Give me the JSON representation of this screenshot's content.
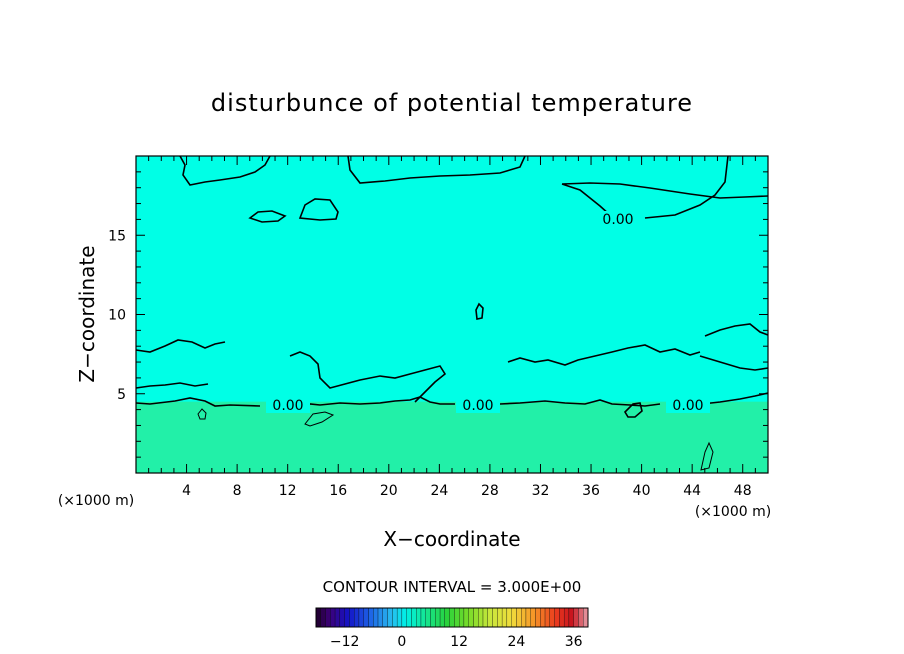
{
  "chart_data": {
    "type": "heatmap",
    "title": "disturbunce of potential temperature",
    "xlabel": "X−coordinate",
    "ylabel": "Z−coordinate",
    "x_unit": "(×1000 m)",
    "y_unit": "(×1000 m)",
    "xlim": [
      0,
      50
    ],
    "ylim": [
      0,
      20
    ],
    "x_ticks": [
      4,
      8,
      12,
      16,
      20,
      24,
      28,
      32,
      36,
      40,
      44,
      48
    ],
    "y_ticks": [
      5,
      10,
      15
    ],
    "contour_labels": [
      "0.00",
      "0.00",
      "0.00",
      "0.00"
    ],
    "contour_interval_text": "CONTOUR INTERVAL = 3.000E+00",
    "colorbar": {
      "min": -18,
      "max": 39,
      "ticks": [
        -12,
        0,
        12,
        24,
        36
      ],
      "tick_labels": [
        "−12",
        "0",
        "12",
        "24",
        "36"
      ]
    },
    "field": {
      "upper_layer_value": -3,
      "lower_layer_value": 3,
      "interface_height_km": 4.5
    },
    "colors": {
      "upper_layer": "#00ffe6",
      "lower_layer": "#22f0a8",
      "contour": "#000000"
    }
  }
}
